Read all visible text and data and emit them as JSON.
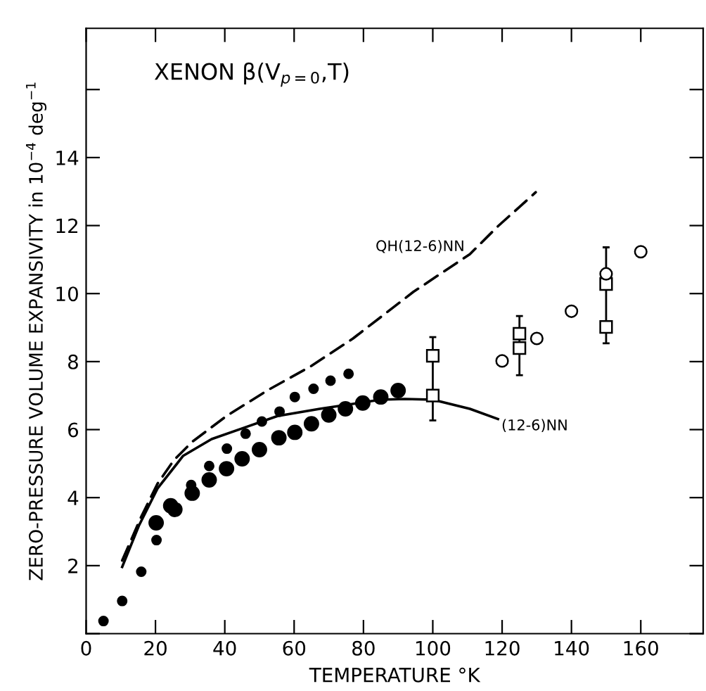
{
  "chart_data": {
    "type": "scatter",
    "title": "XENON β(V$_{p=0}$,T)",
    "xlabel": "TEMPERATURE °K",
    "ylabel": "ZERO-PRESSURE VOLUME EXPANSIVITY in 10$^{−4}$ deg$^{−1}$",
    "xlim": [
      0,
      178
    ],
    "ylim": [
      0,
      17.8
    ],
    "xticks": [
      0,
      20,
      40,
      60,
      80,
      100,
      120,
      140,
      160
    ],
    "yticks": [
      {
        "value": 0,
        "label": null
      },
      2,
      4,
      6,
      8,
      10,
      12,
      14,
      {
        "value": 16,
        "label": null
      }
    ],
    "grid": false,
    "series": [
      {
        "marker": "circle",
        "color": "#000000",
        "x": [
          5,
          10.4,
          15.9,
          20.3,
          30.3,
          35.5,
          40.6,
          46,
          50.7,
          55.8,
          60.2,
          65.6,
          70.5,
          75.7
        ],
        "values": [
          0.37,
          0.96,
          1.82,
          2.75,
          4.37,
          4.93,
          5.44,
          5.88,
          6.24,
          6.53,
          6.96,
          7.2,
          7.44,
          7.64
        ]
      },
      {
        "marker": "circle",
        "color": "#000000",
        "x": [
          20.2,
          24.4,
          25.6,
          30.6,
          35.5,
          40.5,
          45,
          50,
          55.6,
          60.2,
          65,
          70,
          74.8,
          79.8,
          85,
          90
        ],
        "values": [
          3.26,
          3.76,
          3.65,
          4.13,
          4.52,
          4.85,
          5.14,
          5.41,
          5.76,
          5.92,
          6.17,
          6.43,
          6.61,
          6.78,
          6.96,
          7.15
        ]
      },
      {
        "marker": "square",
        "color": "#ffffff",
        "x": [
          100,
          100,
          125,
          125,
          150,
          150
        ],
        "values": [
          8.17,
          7.0,
          8.82,
          8.4,
          10.28,
          9.02
        ],
        "errors": [
          [
            6.27,
            8.72
          ],
          null,
          [
            7.6,
            9.34
          ],
          null,
          [
            8.54,
            11.36
          ],
          null
        ]
      },
      {
        "marker": "circle",
        "color": "#ffffff",
        "x": [
          120,
          130,
          140,
          150,
          160
        ],
        "values": [
          8.02,
          8.68,
          9.48,
          10.58,
          11.23
        ]
      },
      {
        "type": "line",
        "name": "QH(12-6)NN",
        "line_style": "dashed",
        "color": "#000000",
        "x": [
          10.4,
          15.9,
          20.6,
          25.3,
          30.7,
          40.5,
          52.4,
          64.6,
          77,
          94.4,
          110.7,
          118.8,
          129.7
        ],
        "values": [
          2.15,
          3.44,
          4.41,
          5.1,
          5.65,
          6.4,
          7.16,
          7.85,
          8.68,
          10.05,
          11.16,
          11.98,
          12.98
        ]
      },
      {
        "type": "line",
        "name": "(12-6)NN",
        "line_style": "solid",
        "color": "#000000",
        "x": [
          10.4,
          15.2,
          20.6,
          28,
          36.2,
          45.7,
          55.2,
          67.4,
          85,
          92,
          100,
          110.7,
          118.8
        ],
        "values": [
          1.96,
          3.17,
          4.27,
          5.23,
          5.72,
          6.06,
          6.4,
          6.61,
          6.88,
          6.9,
          6.88,
          6.61,
          6.31
        ]
      }
    ]
  }
}
